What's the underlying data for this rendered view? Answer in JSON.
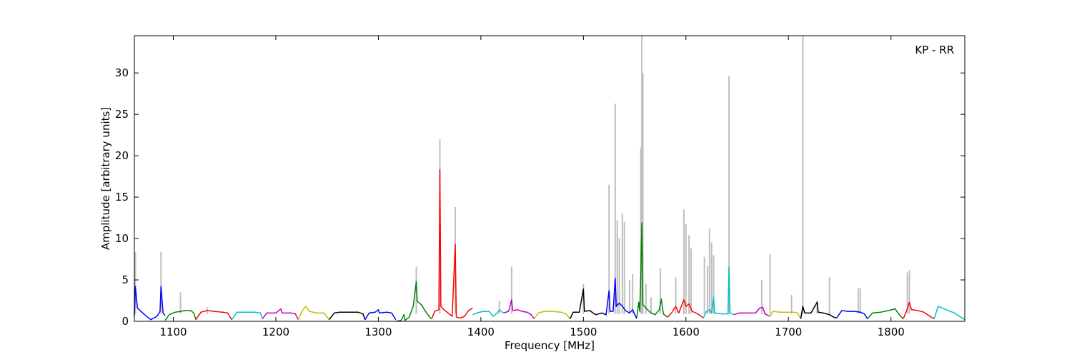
{
  "chart_data": {
    "type": "line",
    "title": "",
    "annotation": "KP - RR",
    "xlabel": "Frequency [MHz]",
    "ylabel": "Amplitude [arbitrary units]",
    "xlim": [
      1062,
      1872
    ],
    "ylim": [
      0,
      34.5
    ],
    "grid": false,
    "xticks": [
      1100,
      1200,
      1300,
      1400,
      1500,
      1600,
      1700,
      1800
    ],
    "yticks": [
      0,
      5,
      10,
      15,
      20,
      25,
      30
    ],
    "raw_color": "#bfbfbf",
    "raw_peaks": [
      {
        "x": 1063,
        "y": 8.4
      },
      {
        "x": 1088,
        "y": 8.4
      },
      {
        "x": 1107,
        "y": 3.5
      },
      {
        "x": 1133,
        "y": 1.7
      },
      {
        "x": 1337,
        "y": 6.6
      },
      {
        "x": 1360,
        "y": 22.0
      },
      {
        "x": 1375,
        "y": 13.8
      },
      {
        "x": 1418,
        "y": 2.5
      },
      {
        "x": 1430,
        "y": 6.6
      },
      {
        "x": 1500,
        "y": 4.5
      },
      {
        "x": 1525,
        "y": 16.5
      },
      {
        "x": 1531,
        "y": 26.3
      },
      {
        "x": 1533,
        "y": 12.2
      },
      {
        "x": 1535,
        "y": 10.0
      },
      {
        "x": 1538,
        "y": 13.0
      },
      {
        "x": 1540,
        "y": 12.0
      },
      {
        "x": 1545,
        "y": 5.0
      },
      {
        "x": 1548,
        "y": 5.7
      },
      {
        "x": 1556,
        "y": 21.0
      },
      {
        "x": 1557,
        "y": 34.5
      },
      {
        "x": 1558,
        "y": 30.0
      },
      {
        "x": 1561,
        "y": 4.5
      },
      {
        "x": 1566,
        "y": 2.9
      },
      {
        "x": 1575,
        "y": 6.4
      },
      {
        "x": 1590,
        "y": 5.3
      },
      {
        "x": 1598,
        "y": 13.5
      },
      {
        "x": 1600,
        "y": 11.8
      },
      {
        "x": 1603,
        "y": 10.4
      },
      {
        "x": 1605,
        "y": 8.8
      },
      {
        "x": 1618,
        "y": 7.8
      },
      {
        "x": 1621,
        "y": 6.7
      },
      {
        "x": 1623,
        "y": 11.2
      },
      {
        "x": 1625,
        "y": 9.5
      },
      {
        "x": 1627,
        "y": 8.0
      },
      {
        "x": 1642,
        "y": 29.6
      },
      {
        "x": 1674,
        "y": 5.0
      },
      {
        "x": 1682,
        "y": 8.1
      },
      {
        "x": 1703,
        "y": 3.2
      },
      {
        "x": 1714,
        "y": 34.5
      },
      {
        "x": 1728,
        "y": 2.5
      },
      {
        "x": 1740,
        "y": 5.3
      },
      {
        "x": 1768,
        "y": 4.0
      },
      {
        "x": 1770,
        "y": 4.0
      },
      {
        "x": 1816,
        "y": 5.9
      },
      {
        "x": 1818,
        "y": 6.2
      }
    ],
    "series": [
      {
        "color": "#0000ff",
        "x_range": [
          1062,
          1092
        ],
        "points": [
          [
            1062,
            0.6
          ],
          [
            1063,
            4.2
          ],
          [
            1065,
            1.6
          ],
          [
            1072,
            0.8
          ],
          [
            1078,
            0.2
          ],
          [
            1084,
            0.6
          ],
          [
            1087,
            1.2
          ],
          [
            1088,
            4.2
          ],
          [
            1090,
            1.0
          ],
          [
            1092,
            0.7
          ]
        ]
      },
      {
        "color": "#008000",
        "x_range": [
          1092,
          1122
        ],
        "points": [
          [
            1092,
            0.1
          ],
          [
            1096,
            0.8
          ],
          [
            1102,
            1.1
          ],
          [
            1107,
            1.2
          ],
          [
            1112,
            1.3
          ],
          [
            1117,
            1.3
          ],
          [
            1120,
            1.0
          ],
          [
            1122,
            0.2
          ]
        ]
      },
      {
        "color": "#ff0000",
        "x_range": [
          1122,
          1157
        ],
        "points": [
          [
            1122,
            0.2
          ],
          [
            1127,
            1.1
          ],
          [
            1133,
            1.3
          ],
          [
            1140,
            1.2
          ],
          [
            1148,
            1.1
          ],
          [
            1153,
            1.0
          ],
          [
            1157,
            0.2
          ]
        ]
      },
      {
        "color": "#00bfbf",
        "x_range": [
          1157,
          1187
        ],
        "points": [
          [
            1157,
            0.2
          ],
          [
            1162,
            1.1
          ],
          [
            1170,
            1.1
          ],
          [
            1180,
            1.1
          ],
          [
            1185,
            1.0
          ],
          [
            1187,
            0.3
          ]
        ]
      },
      {
        "color": "#bf00bf",
        "x_range": [
          1187,
          1222
        ],
        "points": [
          [
            1187,
            0.3
          ],
          [
            1191,
            1.0
          ],
          [
            1200,
            1.0
          ],
          [
            1205,
            1.5
          ],
          [
            1206,
            1.0
          ],
          [
            1215,
            1.0
          ],
          [
            1219,
            0.9
          ],
          [
            1222,
            0.2
          ]
        ]
      },
      {
        "color": "#bfbf00",
        "x_range": [
          1222,
          1252
        ],
        "points": [
          [
            1222,
            0.2
          ],
          [
            1225,
            1.1
          ],
          [
            1229,
            1.8
          ],
          [
            1233,
            1.2
          ],
          [
            1240,
            1.0
          ],
          [
            1247,
            1.0
          ],
          [
            1252,
            0.2
          ]
        ]
      },
      {
        "color": "#000000",
        "x_range": [
          1252,
          1287
        ],
        "points": [
          [
            1252,
            0.2
          ],
          [
            1257,
            1.0
          ],
          [
            1262,
            1.1
          ],
          [
            1270,
            1.1
          ],
          [
            1280,
            1.1
          ],
          [
            1285,
            0.9
          ],
          [
            1287,
            0.2
          ]
        ]
      },
      {
        "color": "#0000ff",
        "x_range": [
          1287,
          1317
        ],
        "points": [
          [
            1287,
            0.2
          ],
          [
            1291,
            1.0
          ],
          [
            1297,
            1.1
          ],
          [
            1300,
            1.4
          ],
          [
            1301,
            1.0
          ],
          [
            1308,
            1.1
          ],
          [
            1313,
            1.0
          ],
          [
            1317,
            0.2
          ]
        ]
      },
      {
        "color": "#008000",
        "x_range": [
          1317,
          1352
        ],
        "points": [
          [
            1317,
            0.0
          ],
          [
            1322,
            0.1
          ],
          [
            1325,
            0.8
          ],
          [
            1326,
            0.1
          ],
          [
            1330,
            0.5
          ],
          [
            1334,
            1.8
          ],
          [
            1337,
            4.8
          ],
          [
            1338,
            2.4
          ],
          [
            1342,
            2.0
          ],
          [
            1346,
            1.2
          ],
          [
            1350,
            0.5
          ],
          [
            1352,
            0.3
          ]
        ]
      },
      {
        "color": "#ff0000",
        "x_range": [
          1352,
          1392
        ],
        "points": [
          [
            1352,
            0.3
          ],
          [
            1355,
            1.2
          ],
          [
            1359,
            1.4
          ],
          [
            1360,
            18.3
          ],
          [
            1361,
            1.8
          ],
          [
            1364,
            1.4
          ],
          [
            1368,
            1.0
          ],
          [
            1372,
            0.6
          ],
          [
            1375,
            9.3
          ],
          [
            1376,
            0.5
          ],
          [
            1380,
            0.4
          ],
          [
            1384,
            0.6
          ],
          [
            1388,
            1.3
          ],
          [
            1392,
            1.6
          ]
        ]
      },
      {
        "color": "#00bfbf",
        "x_range": [
          1392,
          1422
        ],
        "points": [
          [
            1392,
            0.8
          ],
          [
            1396,
            1.0
          ],
          [
            1402,
            1.2
          ],
          [
            1408,
            1.2
          ],
          [
            1412,
            0.6
          ],
          [
            1416,
            1.0
          ],
          [
            1418,
            1.4
          ],
          [
            1422,
            1.0
          ]
        ]
      },
      {
        "color": "#bf00bf",
        "x_range": [
          1422,
          1452
        ],
        "points": [
          [
            1422,
            1.0
          ],
          [
            1427,
            1.2
          ],
          [
            1430,
            2.6
          ],
          [
            1431,
            1.3
          ],
          [
            1436,
            1.4
          ],
          [
            1440,
            1.2
          ],
          [
            1445,
            1.1
          ],
          [
            1449,
            0.8
          ],
          [
            1452,
            0.3
          ]
        ]
      },
      {
        "color": "#bfbf00",
        "x_range": [
          1452,
          1487
        ],
        "points": [
          [
            1452,
            0.3
          ],
          [
            1456,
            1.0
          ],
          [
            1462,
            1.2
          ],
          [
            1470,
            1.2
          ],
          [
            1478,
            1.1
          ],
          [
            1483,
            0.9
          ],
          [
            1487,
            0.3
          ]
        ]
      },
      {
        "color": "#000000",
        "x_range": [
          1487,
          1522
        ],
        "points": [
          [
            1487,
            0.3
          ],
          [
            1490,
            1.1
          ],
          [
            1496,
            1.1
          ],
          [
            1500,
            3.9
          ],
          [
            1501,
            1.2
          ],
          [
            1506,
            1.3
          ],
          [
            1512,
            0.8
          ],
          [
            1518,
            1.0
          ],
          [
            1522,
            0.8
          ]
        ]
      },
      {
        "color": "#0000ff",
        "x_range": [
          1522,
          1552
        ],
        "points": [
          [
            1522,
            0.7
          ],
          [
            1525,
            3.7
          ],
          [
            1526,
            1.2
          ],
          [
            1529,
            1.2
          ],
          [
            1531,
            5.2
          ],
          [
            1532,
            1.8
          ],
          [
            1535,
            2.2
          ],
          [
            1538,
            1.8
          ],
          [
            1541,
            1.3
          ],
          [
            1545,
            1.0
          ],
          [
            1548,
            1.4
          ],
          [
            1552,
            0.3
          ]
        ]
      },
      {
        "color": "#008000",
        "x_range": [
          1552,
          1582
        ],
        "points": [
          [
            1552,
            0.4
          ],
          [
            1554,
            2.3
          ],
          [
            1555,
            1.2
          ],
          [
            1556,
            6.0
          ],
          [
            1557,
            11.9
          ],
          [
            1558,
            2.0
          ],
          [
            1561,
            1.6
          ],
          [
            1566,
            1.0
          ],
          [
            1570,
            0.8
          ],
          [
            1574,
            1.4
          ],
          [
            1576,
            2.7
          ],
          [
            1578,
            0.9
          ],
          [
            1582,
            0.5
          ]
        ]
      },
      {
        "color": "#ff0000",
        "x_range": [
          1582,
          1617
        ],
        "points": [
          [
            1582,
            0.5
          ],
          [
            1586,
            1.0
          ],
          [
            1590,
            1.8
          ],
          [
            1593,
            1.0
          ],
          [
            1598,
            2.6
          ],
          [
            1600,
            1.8
          ],
          [
            1603,
            2.1
          ],
          [
            1606,
            1.2
          ],
          [
            1610,
            1.0
          ],
          [
            1614,
            0.7
          ],
          [
            1617,
            0.4
          ]
        ]
      },
      {
        "color": "#00bfbf",
        "x_range": [
          1617,
          1647
        ],
        "points": [
          [
            1617,
            0.4
          ],
          [
            1620,
            1.2
          ],
          [
            1623,
            1.4
          ],
          [
            1625,
            1.0
          ],
          [
            1627,
            2.9
          ],
          [
            1628,
            1.0
          ],
          [
            1635,
            0.9
          ],
          [
            1641,
            0.9
          ],
          [
            1642,
            6.5
          ],
          [
            1643,
            1.0
          ],
          [
            1647,
            0.8
          ]
        ]
      },
      {
        "color": "#bf00bf",
        "x_range": [
          1647,
          1682
        ],
        "points": [
          [
            1647,
            0.8
          ],
          [
            1652,
            1.0
          ],
          [
            1660,
            1.0
          ],
          [
            1668,
            1.0
          ],
          [
            1672,
            1.6
          ],
          [
            1675,
            1.7
          ],
          [
            1677,
            0.9
          ],
          [
            1682,
            0.6
          ]
        ]
      },
      {
        "color": "#bfbf00",
        "x_range": [
          1682,
          1712
        ],
        "points": [
          [
            1682,
            0.6
          ],
          [
            1685,
            1.2
          ],
          [
            1692,
            1.1
          ],
          [
            1700,
            1.1
          ],
          [
            1705,
            1.1
          ],
          [
            1709,
            1.0
          ],
          [
            1712,
            0.3
          ]
        ]
      },
      {
        "color": "#000000",
        "x_range": [
          1712,
          1747
        ],
        "points": [
          [
            1712,
            0.3
          ],
          [
            1714,
            1.8
          ],
          [
            1716,
            1.0
          ],
          [
            1722,
            1.0
          ],
          [
            1728,
            2.3
          ],
          [
            1729,
            1.1
          ],
          [
            1734,
            1.0
          ],
          [
            1740,
            0.8
          ],
          [
            1744,
            0.5
          ],
          [
            1747,
            0.4
          ]
        ]
      },
      {
        "color": "#0000ff",
        "x_range": [
          1747,
          1777
        ],
        "points": [
          [
            1747,
            0.4
          ],
          [
            1752,
            1.3
          ],
          [
            1758,
            1.2
          ],
          [
            1765,
            1.2
          ],
          [
            1770,
            1.1
          ],
          [
            1774,
            0.9
          ],
          [
            1777,
            0.3
          ]
        ]
      },
      {
        "color": "#008000",
        "x_range": [
          1777,
          1812
        ],
        "points": [
          [
            1777,
            0.3
          ],
          [
            1782,
            1.0
          ],
          [
            1790,
            1.1
          ],
          [
            1798,
            1.3
          ],
          [
            1804,
            1.5
          ],
          [
            1808,
            0.8
          ],
          [
            1812,
            0.3
          ]
        ]
      },
      {
        "color": "#ff0000",
        "x_range": [
          1812,
          1842
        ],
        "points": [
          [
            1812,
            0.3
          ],
          [
            1815,
            1.2
          ],
          [
            1818,
            2.3
          ],
          [
            1820,
            1.4
          ],
          [
            1826,
            1.3
          ],
          [
            1832,
            1.1
          ],
          [
            1838,
            0.6
          ],
          [
            1842,
            0.3
          ]
        ]
      },
      {
        "color": "#00bfbf",
        "x_range": [
          1842,
          1872
        ],
        "points": [
          [
            1842,
            0.3
          ],
          [
            1846,
            1.8
          ],
          [
            1850,
            1.6
          ],
          [
            1856,
            1.3
          ],
          [
            1862,
            1.0
          ],
          [
            1868,
            0.5
          ],
          [
            1872,
            0.2
          ]
        ]
      }
    ]
  }
}
